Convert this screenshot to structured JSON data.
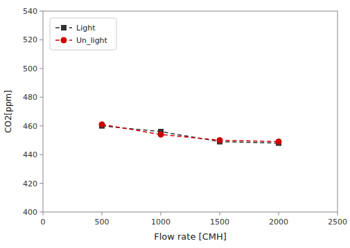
{
  "chart_data": {
    "type": "line",
    "x": [
      500,
      1000,
      1500,
      2000
    ],
    "series": [
      {
        "name": "Light",
        "color": "#333333",
        "values": [
          460,
          456,
          449,
          448
        ],
        "marker": "square",
        "line_style": "dashed"
      },
      {
        "name": "Un_light",
        "color": "#cc0000",
        "values": [
          461,
          454,
          450,
          449
        ],
        "marker": "circle",
        "line_style": "dashed"
      }
    ],
    "xlabel": "Flow rate [CMH]",
    "ylabel": "CO2[ppm]",
    "xlim": [
      0,
      2500
    ],
    "ylim": [
      400,
      540
    ],
    "xticks": [
      0,
      500,
      1000,
      1500,
      2000,
      2500
    ],
    "yticks": [
      400,
      420,
      440,
      460,
      480,
      500,
      520,
      540
    ],
    "grid": false,
    "legend": "upper left"
  }
}
